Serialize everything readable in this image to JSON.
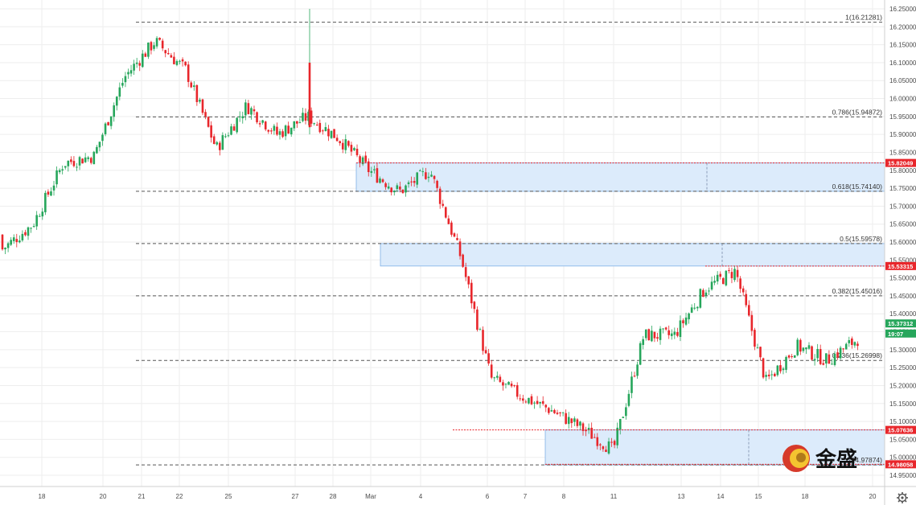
{
  "chart_data": {
    "type": "candlestick",
    "y_range": [
      14.93,
      16.26
    ],
    "y_ticks": [
      "16.25000",
      "16.20000",
      "16.15000",
      "16.10000",
      "16.05000",
      "16.00000",
      "15.95000",
      "15.90000",
      "15.85000",
      "15.80000",
      "15.75000",
      "15.70000",
      "15.65000",
      "15.60000",
      "15.55000",
      "15.50000",
      "15.45000",
      "15.40000",
      "15.35000",
      "15.30000",
      "15.25000",
      "15.20000",
      "15.15000",
      "15.10000",
      "15.05000",
      "15.00000",
      "14.95000"
    ],
    "x_ticks": [
      "18",
      "20",
      "21",
      "22",
      "25",
      "27",
      "28",
      "Mar",
      "4",
      "6",
      "7",
      "8",
      "11",
      "13",
      "14",
      "15",
      "18",
      "20"
    ],
    "fib_levels": [
      {
        "label": "1(16.21281)",
        "value": 16.21281
      },
      {
        "label": "0.786(15.94872)",
        "value": 15.94872
      },
      {
        "label": "0.618(15.74140)",
        "value": 15.7414
      },
      {
        "label": "0.5(15.59578)",
        "value": 15.59578
      },
      {
        "label": "0.382(15.45016)",
        "value": 15.45016
      },
      {
        "label": "0.236(15.26998)",
        "value": 15.26998
      },
      {
        "label": "(14.97874)",
        "value": 14.97874
      }
    ],
    "price_tags": [
      {
        "label": "15.82049",
        "value": 15.82049,
        "color": "#e8262b"
      },
      {
        "label": "15.53315",
        "value": 15.53315,
        "color": "#e8262b"
      },
      {
        "label": "15.37312",
        "value": 15.37312,
        "color": "#26a65b"
      },
      {
        "label": "19:07",
        "value": 15.345,
        "color": "#26a65b"
      },
      {
        "label": "15.07636",
        "value": 15.07636,
        "color": "#e8262b"
      },
      {
        "label": "14.98058",
        "value": 14.98058,
        "color": "#e8262b"
      }
    ],
    "zones": [
      {
        "top": 15.82049,
        "bottom": 15.7414
      },
      {
        "top": 15.59578,
        "bottom": 15.53315
      },
      {
        "top": 15.07636,
        "bottom": 14.97874
      }
    ],
    "waypoints": [
      [
        15.62,
        15.58
      ],
      [
        15.69,
        15.65
      ],
      [
        15.8,
        15.82
      ],
      [
        15.85,
        15.84
      ],
      [
        16.02,
        16.06
      ],
      [
        16.08,
        16.16
      ],
      [
        15.95,
        16.08
      ],
      [
        15.85,
        15.86
      ],
      [
        15.84,
        15.98
      ],
      [
        15.92,
        15.9
      ],
      [
        15.83,
        15.95
      ],
      [
        16.06,
        15.89
      ],
      [
        15.86,
        15.8
      ],
      [
        15.71,
        15.74
      ],
      [
        15.82,
        15.8
      ],
      [
        15.59,
        15.56
      ],
      [
        15.48,
        15.22
      ],
      [
        15.27,
        15.17
      ],
      [
        15.1,
        15.13
      ],
      [
        15.13,
        15.08
      ],
      [
        15.03,
        15.02
      ],
      [
        15.35,
        15.34
      ],
      [
        15.29,
        15.34
      ],
      [
        15.46,
        15.47
      ],
      [
        15.46,
        15.52
      ],
      [
        15.34,
        15.21
      ],
      [
        15.18,
        15.31
      ],
      [
        15.36,
        15.27
      ],
      [
        15.36,
        15.33
      ]
    ],
    "colors": {
      "up": "#26a65b",
      "down": "#e8262b",
      "zone": "#dcebfb",
      "zone_edge": "#7fb0e6",
      "grid": "#eeeeee"
    }
  },
  "watermark": {
    "text": "金盛"
  },
  "settings_icon": "gear-icon"
}
